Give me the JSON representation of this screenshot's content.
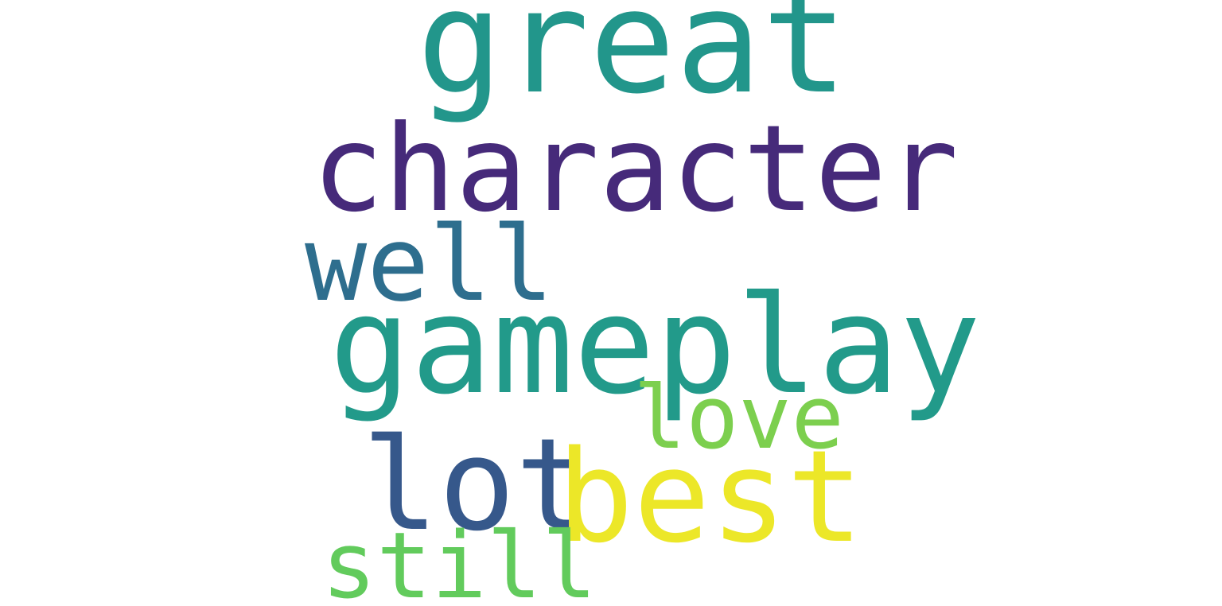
{
  "words": [
    {
      "text": "great",
      "color": "#22968b"
    },
    {
      "text": "character",
      "color": "#462a7a"
    },
    {
      "text": "well",
      "color": "#2e6e8e"
    },
    {
      "text": "gameplay",
      "color": "#229a8a"
    },
    {
      "text": "love",
      "color": "#7ccf4e"
    },
    {
      "text": "lot",
      "color": "#36588b"
    },
    {
      "text": "best",
      "color": "#ece728"
    },
    {
      "text": "still",
      "color": "#62cb5c"
    }
  ]
}
